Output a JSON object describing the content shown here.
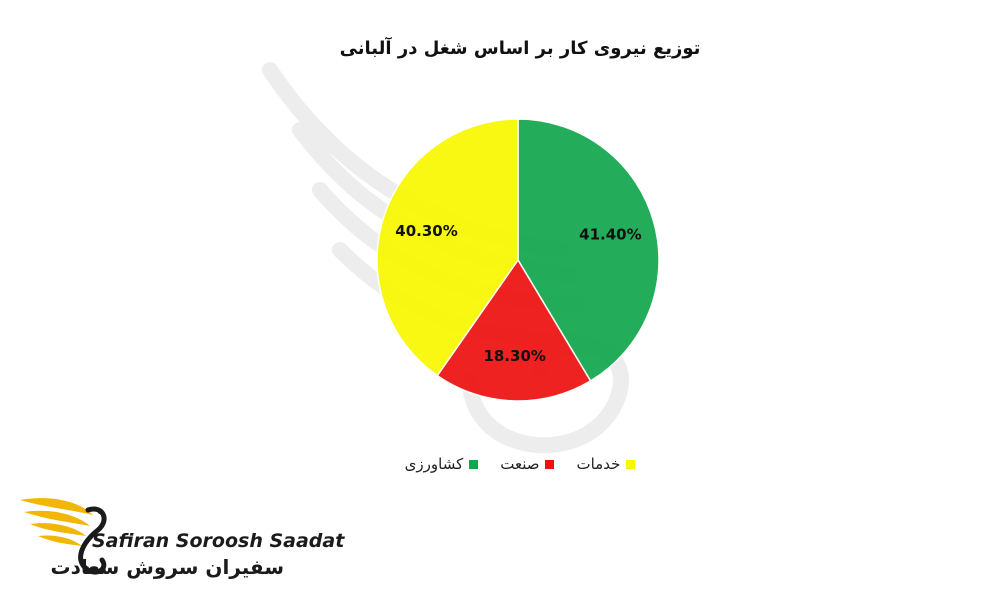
{
  "chart_data": {
    "type": "pie",
    "title": "توزیع نیروی کار بر اساس شغل در آلبانی",
    "slices": [
      {
        "label": "کشاورزی",
        "value": 41.4,
        "display": "41.40%",
        "color": "#12a64c"
      },
      {
        "label": "صنعت",
        "value": 18.3,
        "display": "18.30%",
        "color": "#ee1111"
      },
      {
        "label": "خدمات",
        "value": 40.3,
        "display": "40.30%",
        "color": "#f7f700"
      }
    ],
    "legend_position": "bottom"
  },
  "brand": {
    "name_latin": "Safiran Soroosh Saadat",
    "name_persian": "سفیران سروش سعادت",
    "accent_color": "#f2b705",
    "logo_icon": "bird-wing-logo-icon"
  }
}
